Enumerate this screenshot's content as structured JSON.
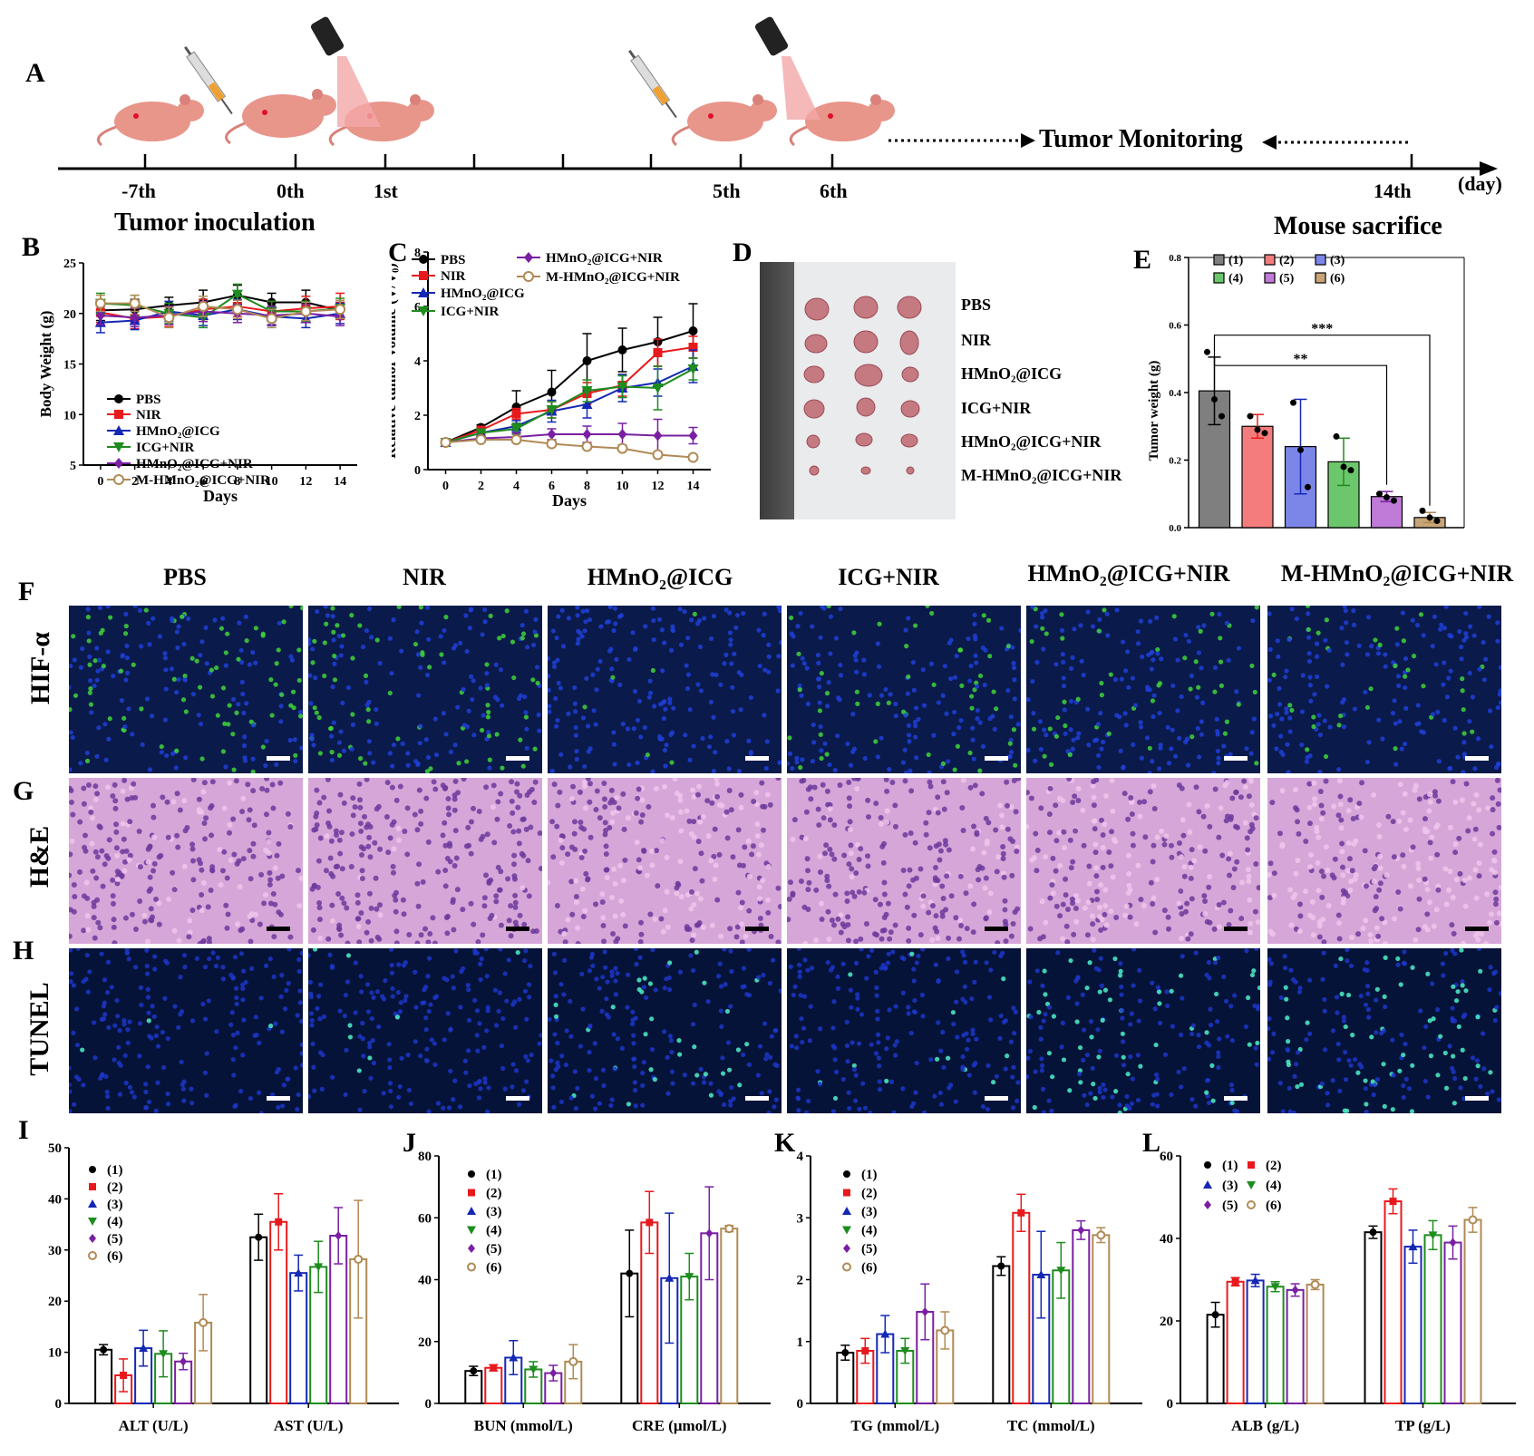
{
  "panel_letters": {
    "A": "A",
    "B": "B",
    "C": "C",
    "D": "D",
    "E": "E",
    "F": "F",
    "G": "G",
    "H": "H",
    "I": "I",
    "J": "J",
    "K": "K",
    "L": "L"
  },
  "timeline": {
    "ticks": [
      "-7th",
      "0th",
      "1st",
      "5th",
      "6th",
      "14th"
    ],
    "unit": "(day)",
    "tumor_inoculation": "Tumor inoculation",
    "tumor_monitoring": "Tumor Monitoring",
    "mouse_sacrifice": "Mouse sacrifice"
  },
  "groups": [
    "PBS",
    "NIR",
    "HMnO₂@ICG",
    "ICG+NIR",
    "HMnO₂@ICG+NIR",
    "M-HMnO₂@ICG+NIR"
  ],
  "group_colors": [
    "#000000",
    "#e8191c",
    "#1428b4",
    "#1e8c1e",
    "#7a1fa2",
    "#b08a55"
  ],
  "bar_fill_colors": [
    "#7f7f7f",
    "#f47c7c",
    "#7b86e8",
    "#6cc76c",
    "#c07ad8",
    "#c8a577"
  ],
  "legend_numbers": [
    "(1)",
    "(2)",
    "(3)",
    "(4)",
    "(5)",
    "(6)"
  ],
  "row_labels": {
    "F": "HIF-α",
    "G": "H&E",
    "H": "TUNEL"
  },
  "chart_data": [
    {
      "id": "B",
      "type": "line",
      "xlabel": "Days",
      "ylabel": "Body Weight (g)",
      "x": [
        0,
        2,
        4,
        6,
        8,
        10,
        12,
        14
      ],
      "xlim": [
        -1,
        15
      ],
      "ylim": [
        5,
        25
      ],
      "xticks": [
        "0",
        "2",
        "4",
        "6",
        "8",
        "10",
        "12",
        "14"
      ],
      "yticks": [
        "5",
        "10",
        "15",
        "20",
        "25"
      ],
      "legend_position": "bottom-left",
      "series": [
        {
          "name": "PBS",
          "values": [
            20.3,
            20.4,
            20.8,
            21.1,
            21.8,
            21.1,
            21.1,
            20.3
          ],
          "err": [
            1.0,
            1.0,
            0.8,
            1.2,
            1.0,
            0.9,
            1.2,
            0.8
          ]
        },
        {
          "name": "NIR",
          "values": [
            20.1,
            19.5,
            19.7,
            20.4,
            20.7,
            20.2,
            20.5,
            20.7
          ],
          "err": [
            1.0,
            1.0,
            1.0,
            1.0,
            1.0,
            1.0,
            1.2,
            1.3
          ]
        },
        {
          "name": "HMnO₂@ICG",
          "values": [
            19.1,
            19.3,
            20.2,
            19.8,
            20.4,
            19.7,
            19.5,
            20.0
          ],
          "err": [
            1.0,
            0.9,
            1.0,
            1.0,
            1.0,
            0.9,
            0.9,
            1.0
          ]
        },
        {
          "name": "ICG+NIR",
          "values": [
            21.0,
            20.8,
            20.0,
            19.6,
            21.9,
            20.2,
            20.2,
            20.5
          ],
          "err": [
            1.0,
            1.0,
            1.0,
            1.0,
            1.0,
            1.0,
            1.0,
            1.0
          ]
        },
        {
          "name": "HMnO₂@ICG+NIR",
          "values": [
            19.8,
            19.6,
            19.8,
            20.2,
            20.0,
            19.8,
            20.0,
            19.7
          ],
          "err": [
            0.9,
            0.9,
            0.9,
            1.0,
            0.9,
            0.9,
            0.9,
            0.9
          ]
        },
        {
          "name": "M-HMnO₂@ICG+NIR",
          "values": [
            21.0,
            21.0,
            19.6,
            20.7,
            20.4,
            19.5,
            20.2,
            20.4
          ],
          "err": [
            0.8,
            0.8,
            1.0,
            1.0,
            0.9,
            0.9,
            0.9,
            0.9
          ]
        }
      ]
    },
    {
      "id": "C",
      "type": "line",
      "xlabel": "Days",
      "ylabel": "Relative tumor volume (V/V₀)",
      "x": [
        0,
        2,
        4,
        6,
        8,
        10,
        12,
        14
      ],
      "xlim": [
        -1,
        15
      ],
      "ylim": [
        0,
        8
      ],
      "xticks": [
        "0",
        "2",
        "4",
        "6",
        "8",
        "10",
        "12",
        "14"
      ],
      "yticks": [
        "0",
        "2",
        "4",
        "6",
        "8"
      ],
      "legend_position": "top",
      "series": [
        {
          "name": "PBS",
          "values": [
            1.0,
            1.55,
            2.3,
            2.85,
            4.0,
            4.4,
            4.7,
            5.1
          ],
          "err": [
            0.05,
            0.1,
            0.6,
            0.8,
            1.0,
            0.8,
            0.9,
            1.0
          ]
        },
        {
          "name": "NIR",
          "values": [
            1.0,
            1.45,
            2.05,
            2.2,
            2.8,
            3.1,
            4.3,
            4.5
          ],
          "err": [
            0.05,
            0.1,
            0.2,
            0.3,
            0.4,
            0.4,
            0.5,
            0.4
          ]
        },
        {
          "name": "HMnO₂@ICG",
          "values": [
            1.0,
            1.35,
            1.6,
            2.15,
            2.4,
            3.0,
            3.2,
            3.8
          ],
          "err": [
            0.05,
            0.1,
            0.2,
            0.4,
            0.5,
            0.5,
            0.5,
            0.6
          ]
        },
        {
          "name": "ICG+NIR",
          "values": [
            1.0,
            1.35,
            1.5,
            2.2,
            2.9,
            3.05,
            3.0,
            3.7
          ],
          "err": [
            0.05,
            0.1,
            0.2,
            0.3,
            0.4,
            0.4,
            0.8,
            0.4
          ]
        },
        {
          "name": "HMnO₂@ICG+NIR",
          "values": [
            1.0,
            1.15,
            1.2,
            1.3,
            1.3,
            1.3,
            1.25,
            1.25
          ],
          "err": [
            0.05,
            0.1,
            0.15,
            0.2,
            0.3,
            0.4,
            0.6,
            0.3
          ]
        },
        {
          "name": "M-HMnO₂@ICG+NIR",
          "values": [
            1.0,
            1.1,
            1.1,
            0.95,
            0.85,
            0.78,
            0.55,
            0.45
          ],
          "err": [
            0.05,
            0.1,
            0.1,
            0.1,
            0.1,
            0.1,
            0.1,
            0.1
          ]
        }
      ]
    },
    {
      "id": "E",
      "type": "bar",
      "categories": [
        "(1)",
        "(2)",
        "(3)",
        "(4)",
        "(5)",
        "(6)"
      ],
      "ylabel": "Tumor weight (g)",
      "ylim": [
        0,
        0.8
      ],
      "yticks": [
        "0.0",
        "0.2",
        "0.4",
        "0.6",
        "0.8"
      ],
      "values": [
        0.405,
        0.3,
        0.24,
        0.195,
        0.092,
        0.03
      ],
      "err": [
        0.1,
        0.035,
        0.14,
        0.07,
        0.015,
        0.015
      ],
      "points": [
        [
          0.52,
          0.38,
          0.33
        ],
        [
          0.33,
          0.29,
          0.28
        ],
        [
          0.37,
          0.23,
          0.12
        ],
        [
          0.27,
          0.18,
          0.17
        ],
        [
          0.1,
          0.09,
          0.08
        ],
        [
          0.05,
          0.03,
          0.02
        ]
      ],
      "significance": [
        {
          "from": 0,
          "to": 5,
          "label": "***"
        },
        {
          "from": 0,
          "to": 4,
          "label": "**"
        }
      ],
      "legend_position": "top"
    },
    {
      "id": "I",
      "type": "bar",
      "ylim": [
        0,
        50
      ],
      "yticks": [
        "0",
        "10",
        "20",
        "30",
        "40",
        "50"
      ],
      "group_labels": [
        "ALT (U/L)",
        "AST (U/L)"
      ],
      "values": [
        [
          10.5,
          5.5,
          10.8,
          9.7,
          8.2,
          15.8
        ],
        [
          32.5,
          35.5,
          25.5,
          26.7,
          32.8,
          28.2
        ]
      ],
      "err": [
        [
          1.0,
          3.2,
          3.5,
          4.5,
          1.6,
          5.5
        ],
        [
          4.5,
          5.5,
          3.5,
          5.0,
          5.5,
          11.5
        ]
      ],
      "legend_position": "top-left"
    },
    {
      "id": "J",
      "type": "bar",
      "ylim": [
        0,
        80
      ],
      "yticks": [
        "0",
        "20",
        "40",
        "60",
        "80"
      ],
      "group_labels": [
        "BUN (mmol/L)",
        "CRE (μmol/L)"
      ],
      "values": [
        [
          10.5,
          11.5,
          14.8,
          11.0,
          9.8,
          13.5
        ],
        [
          42.0,
          58.5,
          40.5,
          41.0,
          55.0,
          56.5
        ]
      ],
      "err": [
        [
          1.5,
          1.0,
          5.5,
          2.5,
          2.5,
          5.5
        ],
        [
          14.0,
          10.0,
          21.0,
          7.5,
          15.0,
          1.0
        ]
      ],
      "legend_position": "top-left"
    },
    {
      "id": "K",
      "type": "bar",
      "ylim": [
        0,
        4
      ],
      "yticks": [
        "0",
        "1",
        "2",
        "3",
        "4"
      ],
      "group_labels": [
        "TG (mmol/L)",
        "TC (mmol/L)"
      ],
      "values": [
        [
          0.82,
          0.85,
          1.12,
          0.85,
          1.48,
          1.18
        ],
        [
          2.22,
          3.08,
          2.08,
          2.15,
          2.8,
          2.72
        ]
      ],
      "err": [
        [
          0.12,
          0.2,
          0.3,
          0.2,
          0.45,
          0.3
        ],
        [
          0.15,
          0.3,
          0.7,
          0.45,
          0.15,
          0.12
        ]
      ],
      "legend_position": "top-left"
    },
    {
      "id": "L",
      "type": "bar",
      "ylim": [
        0,
        60
      ],
      "yticks": [
        "0",
        "20",
        "40",
        "60"
      ],
      "group_labels": [
        "ALB (g/L)",
        "TP (g/L)"
      ],
      "values": [
        [
          21.5,
          29.5,
          29.8,
          28.3,
          27.5,
          28.8
        ],
        [
          41.5,
          49.0,
          38.0,
          40.8,
          39.0,
          44.5
        ]
      ],
      "err": [
        [
          3.0,
          1.0,
          1.5,
          1.2,
          1.5,
          1.2
        ],
        [
          1.5,
          3.0,
          4.0,
          3.5,
          4.0,
          3.0
        ]
      ],
      "legend_position": "top"
    }
  ]
}
